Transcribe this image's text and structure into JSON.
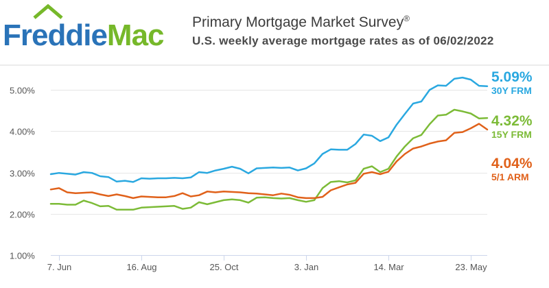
{
  "logo": {
    "text_freddie": "Freddie",
    "text_mac": "Mac",
    "color_freddie": "#2a73b8",
    "color_mac": "#76b82a"
  },
  "chart_data": {
    "type": "line",
    "title": "Primary Mortgage Market Survey",
    "title_mark": "®",
    "subtitle": "U.S. weekly average mortgage rates as of 06/02/2022",
    "ylim": [
      1.0,
      5.6
    ],
    "y_ticks": [
      1.0,
      2.0,
      3.0,
      4.0,
      5.0
    ],
    "y_tick_labels": [
      "1.00%",
      "2.00%",
      "3.00%",
      "4.00%",
      "5.00%"
    ],
    "x_tick_labels": [
      "7. Jun",
      "16. Aug",
      "25. Oct",
      "3. Jan",
      "14. Mar",
      "23. May"
    ],
    "x_tick_weeks": [
      1,
      11,
      21,
      31,
      41,
      51
    ],
    "grid": true,
    "x_weeks": [
      0,
      1,
      2,
      3,
      4,
      5,
      6,
      7,
      8,
      9,
      10,
      11,
      12,
      13,
      14,
      15,
      16,
      17,
      18,
      19,
      20,
      21,
      22,
      23,
      24,
      25,
      26,
      27,
      28,
      29,
      30,
      31,
      32,
      33,
      34,
      35,
      36,
      37,
      38,
      39,
      40,
      41,
      42,
      43,
      44,
      45,
      46,
      47,
      48,
      49,
      50,
      51,
      52,
      53
    ],
    "series": [
      {
        "name": "30Y FRM",
        "color": "#2aa8e0",
        "last_label": "5.09%",
        "values": [
          2.96,
          2.99,
          2.97,
          2.95,
          3.01,
          2.99,
          2.91,
          2.89,
          2.78,
          2.8,
          2.77,
          2.86,
          2.85,
          2.86,
          2.86,
          2.87,
          2.86,
          2.88,
          3.01,
          2.99,
          3.05,
          3.09,
          3.14,
          3.09,
          2.98,
          3.1,
          3.11,
          3.12,
          3.11,
          3.12,
          3.05,
          3.1,
          3.22,
          3.45,
          3.56,
          3.55,
          3.55,
          3.69,
          3.92,
          3.89,
          3.76,
          3.85,
          4.16,
          4.42,
          4.67,
          4.72,
          5.0,
          5.11,
          5.1,
          5.27,
          5.3,
          5.25,
          5.1,
          5.09
        ]
      },
      {
        "name": "15Y FRM",
        "color": "#7cbb37",
        "last_label": "4.32%",
        "values": [
          2.24,
          2.24,
          2.22,
          2.22,
          2.32,
          2.26,
          2.18,
          2.19,
          2.1,
          2.1,
          2.1,
          2.15,
          2.16,
          2.17,
          2.18,
          2.19,
          2.12,
          2.15,
          2.28,
          2.23,
          2.28,
          2.33,
          2.35,
          2.33,
          2.27,
          2.39,
          2.4,
          2.38,
          2.37,
          2.38,
          2.33,
          2.29,
          2.33,
          2.62,
          2.77,
          2.79,
          2.76,
          2.81,
          3.09,
          3.15,
          3.01,
          3.09,
          3.39,
          3.63,
          3.83,
          3.91,
          4.17,
          4.38,
          4.4,
          4.52,
          4.48,
          4.43,
          4.31,
          4.32
        ]
      },
      {
        "name": "5/1 ARM",
        "color": "#e0611a",
        "last_label": "4.04%",
        "values": [
          2.59,
          2.62,
          2.52,
          2.5,
          2.51,
          2.52,
          2.47,
          2.43,
          2.47,
          2.43,
          2.38,
          2.42,
          2.41,
          2.4,
          2.4,
          2.43,
          2.5,
          2.42,
          2.45,
          2.54,
          2.52,
          2.54,
          2.53,
          2.52,
          2.5,
          2.49,
          2.47,
          2.45,
          2.49,
          2.46,
          2.4,
          2.38,
          2.38,
          2.41,
          2.57,
          2.64,
          2.71,
          2.75,
          2.97,
          3.01,
          2.96,
          3.02,
          3.27,
          3.45,
          3.58,
          3.63,
          3.7,
          3.75,
          3.78,
          3.96,
          3.98,
          4.07,
          4.18,
          4.04
        ]
      }
    ]
  }
}
